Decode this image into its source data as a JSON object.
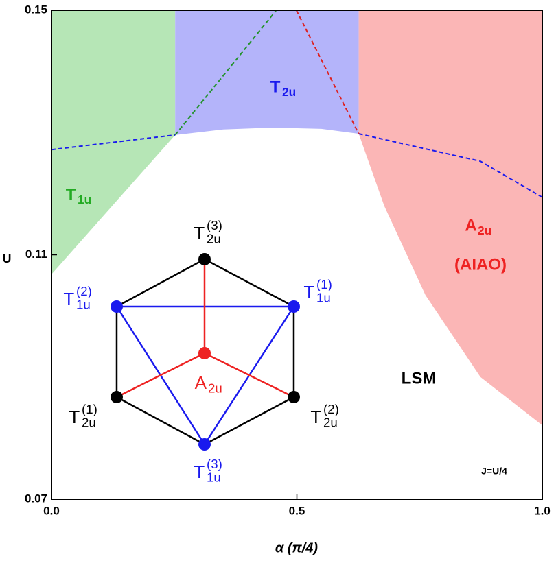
{
  "chart_data": {
    "type": "phase-diagram",
    "xlabel": "α (π/4)",
    "ylabel": "U",
    "xlim": [
      0,
      1
    ],
    "ylim": [
      0.07,
      0.15
    ],
    "xticks": [
      {
        "value": 0,
        "label": "0.0"
      },
      0.5,
      {
        "value": 1,
        "label": "1.0"
      }
    ],
    "yticks": [
      0.07,
      0.11,
      0.15
    ],
    "regions": [
      {
        "color": "#b6e6b6",
        "x": [
          0,
          0.252
        ],
        "lower": [
          0.1068,
          0.1296
        ],
        "label": {
          "text": "T",
          "sub": "1u",
          "color": "#22aa22"
        }
      },
      {
        "color": "#b4b4fa",
        "x": [
          0.252,
          0.35,
          0.45,
          0.55,
          0.626
        ],
        "lower": [
          0.1296,
          0.1305,
          0.1308,
          0.1306,
          0.1298
        ],
        "label": {
          "text": "T",
          "sub": "2u",
          "color": "#1a1aee"
        }
      },
      {
        "color": "#fbb6b6",
        "x": [
          0.626,
          0.678,
          0.762,
          0.874,
          1
        ],
        "lower": [
          0.1298,
          0.118,
          0.1034,
          0.09,
          0.0821
        ],
        "label": {
          "text": "A",
          "sub": "2u",
          "color": "#ee2222"
        }
      }
    ],
    "lines": [
      {
        "color": "#1a1aee",
        "x": [
          0,
          0.252
        ],
        "y": [
          0.1272,
          0.1296
        ]
      },
      {
        "color": "#1a1aee",
        "x": [
          0.626,
          0.874,
          1
        ],
        "y": [
          0.1298,
          0.1253,
          0.1194
        ]
      },
      {
        "color": "#22922a",
        "x": [
          0.252,
          0.458
        ],
        "y": [
          0.1296,
          0.15
        ]
      },
      {
        "color": "#dd2222",
        "x": [
          0.499,
          0.626
        ],
        "y": [
          0.15,
          0.1298
        ]
      }
    ],
    "annotations": [
      "(AIAO)",
      "LSM",
      "J=U/4"
    ],
    "inset": {
      "nodes": [
        {
          "text": "T",
          "sub": "2u",
          "sup": "(3)",
          "color": "#000000"
        },
        {
          "text": "T",
          "sub": "1u",
          "sup": "(2)",
          "color": "#1a1aee"
        },
        {
          "text": "T",
          "sub": "1u",
          "sup": "(1)",
          "color": "#1a1aee"
        },
        {
          "text": "A",
          "sub": "2u",
          "color": "#ee2222"
        },
        {
          "text": "T",
          "sub": "2u",
          "sup": "(1)",
          "color": "#000000"
        },
        {
          "text": "T",
          "sub": "2u",
          "sup": "(2)",
          "color": "#000000"
        },
        {
          "text": "T",
          "sub": "1u",
          "sup": "(3)",
          "color": "#1a1aee"
        }
      ]
    }
  }
}
